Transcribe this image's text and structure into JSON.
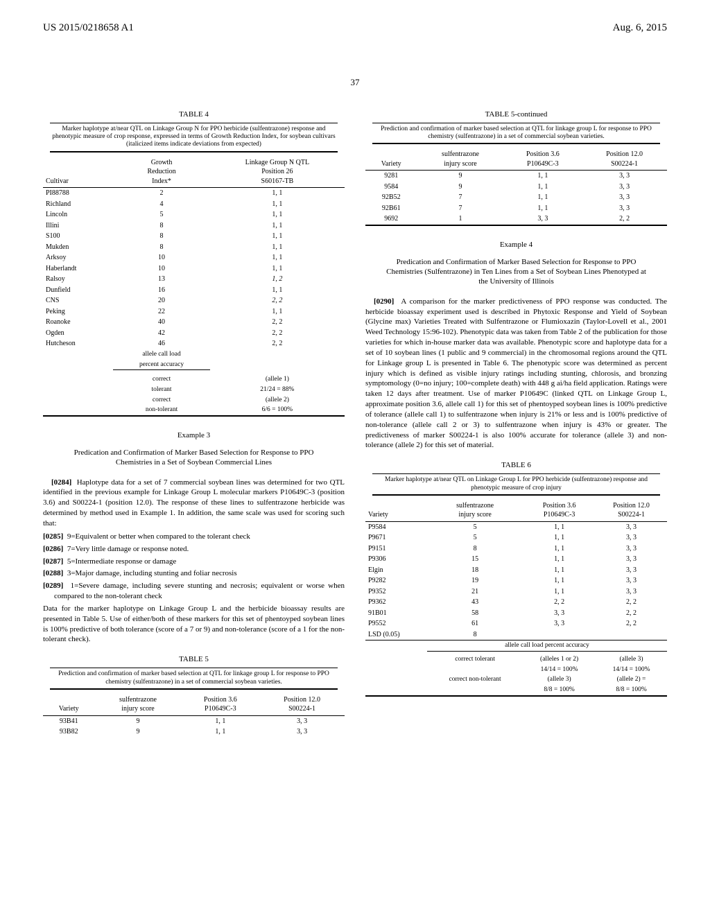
{
  "header": {
    "pub": "US 2015/0218658 A1",
    "date": "Aug. 6, 2015"
  },
  "page_num": "37",
  "table4": {
    "title": "TABLE 4",
    "caption": "Marker haplotype at/near QTL on Linkage Group N for PPO herbicide (sulfentrazone) response and phenotypic measure of crop response, expressed in terms of Growth Reduction Index, for soybean cultivars (italicized items indicate deviations from expected)",
    "col1": "Cultivar",
    "col2a": "Growth",
    "col2b": "Reduction",
    "col2c": "Index*",
    "col3a": "Linkage Group N QTL",
    "col3b": "Position 26",
    "col3c": "S60167-TB",
    "rows": [
      {
        "c": "PI88788",
        "g": "2",
        "p": "1, 1"
      },
      {
        "c": "Richland",
        "g": "4",
        "p": "1, 1"
      },
      {
        "c": "Lincoln",
        "g": "5",
        "p": "1, 1"
      },
      {
        "c": "Illini",
        "g": "8",
        "p": "1, 1"
      },
      {
        "c": "S100",
        "g": "8",
        "p": "1, 1"
      },
      {
        "c": "Mukden",
        "g": "8",
        "p": "1, 1"
      },
      {
        "c": "Arksoy",
        "g": "10",
        "p": "1, 1"
      },
      {
        "c": "Haberlandt",
        "g": "10",
        "p": "1, 1"
      },
      {
        "c": "Ralsoy",
        "g": "13",
        "p": "1, 2",
        "ital": true
      },
      {
        "c": "Dunfield",
        "g": "16",
        "p": "1, 1"
      },
      {
        "c": "CNS",
        "g": "20",
        "p": "2, 2",
        "ital": true
      },
      {
        "c": "Peking",
        "g": "22",
        "p": "1, 1"
      },
      {
        "c": "Roanoke",
        "g": "40",
        "p": "2, 2"
      },
      {
        "c": "Ogden",
        "g": "42",
        "p": "2, 2"
      },
      {
        "c": "Hutcheson",
        "g": "46",
        "p": "2, 2"
      }
    ],
    "sub1": "allele call load",
    "sub2": "percent accuracy",
    "s1a": "correct",
    "s1b": "(allele 1)",
    "s2a": "tolerant",
    "s2b": "21/24 = 88%",
    "s3a": "correct",
    "s3b": "(allele 2)",
    "s4a": "non-tolerant",
    "s4b": "6/6 = 100%"
  },
  "ex3": {
    "title": "Example 3",
    "sub": "Predication and Confirmation of Marker Based Selection for Response to PPO Chemistries in a Set of Soybean Commercial Lines"
  },
  "p0284": "Haplotype data for a set of 7 commercial soybean lines was determined for two QTL identified in the previous example for Linkage Group L molecular markers P10649C-3 (position 3.6) and S00224-1 (position 12.0). The response of these lines to sulfentrazone herbicide was determined by method used in Example 1. In addition, the same scale was used for scoring such that:",
  "c0285": "9=Equivalent or better when compared to the tolerant check",
  "c0286": "7=Very little damage or response noted.",
  "c0287": "5=Intermediate response or damage",
  "c0288": "3=Major damage, including stunting and foliar necrosis",
  "c0289": "1=Severe damage, including severe stunting and necrosis; equivalent or worse when compared to the non-tolerant check",
  "pAfter": "Data for the marker haplotype on Linkage Group L and the herbicide bioassay results are presented in Table 5. Use of either/both of these markers for this set of phentoyped soybean lines is 100% predictive of both tolerance (score of a 7 or 9) and non-tolerance (score of a 1 for the non-tolerant check).",
  "table5": {
    "title": "TABLE 5",
    "caption": "Prediction and confirmation of marker based selection at QTL for linkage group L for response to PPO chemistry (sulfentrazone) in a set of commercial soybean varieties.",
    "h1": "Variety",
    "h2a": "sulfentrazone",
    "h2b": "injury score",
    "h3a": "Position 3.6",
    "h3b": "P10649C-3",
    "h4a": "Position 12.0",
    "h4b": "S00224-1",
    "rows": [
      {
        "v": "93B41",
        "s": "9",
        "p1": "1, 1",
        "p2": "3, 3"
      },
      {
        "v": "93B82",
        "s": "9",
        "p1": "1, 1",
        "p2": "3, 3"
      }
    ]
  },
  "table5c": {
    "title": "TABLE 5-continued",
    "caption": "Prediction and confirmation of marker based selection at QTL for linkage group L for response to PPO chemistry (sulfentrazone) in a set of commercial soybean varieties.",
    "h1": "Variety",
    "h2a": "sulfentrazone",
    "h2b": "injury score",
    "h3a": "Position 3.6",
    "h3b": "P10649C-3",
    "h4a": "Position 12.0",
    "h4b": "S00224-1",
    "rows": [
      {
        "v": "9281",
        "s": "9",
        "p1": "1, 1",
        "p2": "3, 3"
      },
      {
        "v": "9584",
        "s": "9",
        "p1": "1, 1",
        "p2": "3, 3"
      },
      {
        "v": "92B52",
        "s": "7",
        "p1": "1, 1",
        "p2": "3, 3"
      },
      {
        "v": "92B61",
        "s": "7",
        "p1": "1, 1",
        "p2": "3, 3"
      },
      {
        "v": "9692",
        "s": "1",
        "p1": "3, 3",
        "p2": "2, 2"
      }
    ]
  },
  "ex4": {
    "title": "Example 4",
    "sub": "Predication and Confirmation of Marker Based Selection for Response to PPO Chemistries (Sulfentrazone) in Ten Lines from a Set of Soybean Lines Phenotyped at the University of Illinois"
  },
  "p0290": "A comparison for the marker predictiveness of PPO response was conducted. The herbicide bioassay experiment used is described in Phytoxic Response and Yield of Soybean (Glycine max) Varieties Treated with Sulfentrazone or Flumioxazin (Taylor-Lovell et al., 2001 Weed Technology 15:96-102). Phenotypic data was taken from Table 2 of the publication for those varieties for which in-house marker data was available. Phenotypic score and haplotype data for a set of 10 soybean lines (1 public and 9 commercial) in the chromosomal regions around the QTL for Linkage group L is presented in Table 6. The phenotypic score was determined as percent injury which is defined as visible injury ratings including stunting, chlorosis, and bronzing symptomology (0=no injury; 100=complete death) with 448 g ai/ha field application. Ratings were taken 12 days after treatment. Use of marker P10649C (linked QTL on Linkage Group L, approximate position 3.6, allele call 1) for this set of phentoyped soybean lines is 100% predictive of tolerance (allele call 1) to sulfentrazone when injury is 21% or less and is 100% predictive of non-tolerance (allele call 2 or 3) to sulfentrazone when injury is 43% or greater. The predictiveness of marker S00224-1 is also 100% accurate for tolerance (allele 3) and non-tolerance (allele 2) for this set of material.",
  "table6": {
    "title": "TABLE 6",
    "caption": "Marker haplotype at/near QTL on Linkage Group L for PPO herbicide (sulfentrazone) response and phenotypic measure of crop injury",
    "h1": "Variety",
    "h2a": "sulfentrazone",
    "h2b": "injury score",
    "h3a": "Position 3.6",
    "h3b": "P10649C-3",
    "h4a": "Position 12.0",
    "h4b": "S00224-1",
    "rows": [
      {
        "v": "P9584",
        "s": "5",
        "p1": "1, 1",
        "p2": "3, 3"
      },
      {
        "v": "P9671",
        "s": "5",
        "p1": "1, 1",
        "p2": "3, 3"
      },
      {
        "v": "P9151",
        "s": "8",
        "p1": "1, 1",
        "p2": "3, 3"
      },
      {
        "v": "P9306",
        "s": "15",
        "p1": "1, 1",
        "p2": "3, 3"
      },
      {
        "v": "Elgin",
        "s": "18",
        "p1": "1, 1",
        "p2": "3, 3"
      },
      {
        "v": "P9282",
        "s": "19",
        "p1": "1, 1",
        "p2": "3, 3"
      },
      {
        "v": "P9352",
        "s": "21",
        "p1": "1, 1",
        "p2": "3, 3"
      },
      {
        "v": "P9362",
        "s": "43",
        "p1": "2, 2",
        "p2": "2, 2"
      },
      {
        "v": "91B01",
        "s": "58",
        "p1": "3, 3",
        "p2": "2, 2"
      },
      {
        "v": "P9552",
        "s": "61",
        "p1": "3, 3",
        "p2": "2, 2"
      },
      {
        "v": "LSD (0.05)",
        "s": "8",
        "p1": "",
        "p2": ""
      }
    ],
    "sub": "allele call load percent accuracy",
    "f1a": "correct tolerant",
    "f1b": "(alleles 1 or 2)",
    "f1c": "(allele 3)",
    "f2b": "14/14 = 100%",
    "f2c": "14/14 = 100%",
    "f3a": "correct non-tolerant",
    "f3b": "(allele 3)",
    "f3c": "(allele 2) =",
    "f4b": "8/8 = 100%",
    "f4c": "8/8 = 100%"
  },
  "labels": {
    "p0284": "[0284]",
    "p0285": "[0285]",
    "p0286": "[0286]",
    "p0287": "[0287]",
    "p0288": "[0288]",
    "p0289": "[0289]",
    "p0290": "[0290]"
  }
}
